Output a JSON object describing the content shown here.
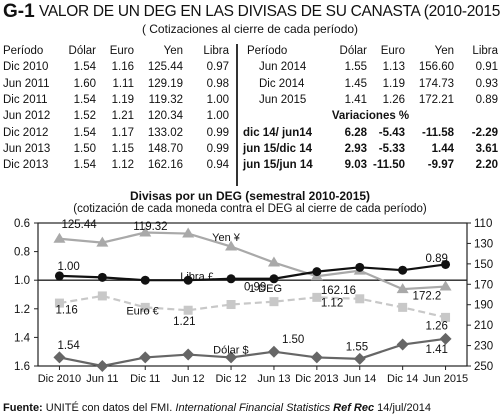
{
  "header": {
    "tag": "G-1",
    "title": "VALOR DE UN DEG EN LAS DIVISAS DE SU CANASTA (2010-2015)",
    "subtitle": "( Cotizaciones al cierre de cada período)"
  },
  "table_left": {
    "columns": [
      "Período",
      "Dólar",
      "Euro",
      "Yen",
      "Libra"
    ],
    "rows": [
      [
        "Dic 2010",
        "1.54",
        "1.16",
        "125.44",
        "0.97"
      ],
      [
        "Jun 2011",
        "1.60",
        "1.11",
        "129.19",
        "0.98"
      ],
      [
        "Dic 2011",
        "1.54",
        "1.19",
        "119.32",
        "1.00"
      ],
      [
        "Jun 2012",
        "1.52",
        "1.21",
        "120.34",
        "1.00"
      ],
      [
        "Dic 2012",
        "1.54",
        "1.17",
        "133.02",
        "0.99"
      ],
      [
        "Jun 2013",
        "1.50",
        "1.15",
        "148.70",
        "0.99"
      ],
      [
        "Dic 2013",
        "1.54",
        "1.12",
        "162.16",
        "0.94"
      ]
    ]
  },
  "table_right": {
    "columns": [
      "Período",
      "Dólar",
      "Euro",
      "Yen",
      "Libra"
    ],
    "rows": [
      [
        "Jun 2014",
        "1.55",
        "1.13",
        "156.60",
        "0.91"
      ],
      [
        "Dic 2014",
        "1.45",
        "1.19",
        "174.73",
        "0.93"
      ],
      [
        "Jun 2015",
        "1.41",
        "1.26",
        "172.21",
        "0.89"
      ]
    ],
    "variations_title": "Variaciones %",
    "variations": [
      [
        "dic 14/ jun14",
        "6.28",
        "-5.43",
        "-11.58",
        "-2.29"
      ],
      [
        "jun 15/dic 14",
        "2.93",
        "-5.33",
        "1.44",
        "3.61"
      ],
      [
        "jun 15/jun 14",
        "9.03",
        "-11.50",
        "-9.97",
        "2.20"
      ]
    ]
  },
  "chart_data": {
    "type": "line",
    "title": "Divisas por un DEG (semestral 2010-2015)",
    "subtitle": "(cotización de cada moneda contra el DEG al cierre de cada período)",
    "categories": [
      "Dic 2010",
      "Jun 11",
      "Dic 11",
      "Jun 12",
      "Dic 12",
      "Jun 13",
      "Dic 2013",
      "Jun 14",
      "Dic 14",
      "Jun 2015"
    ],
    "left_axis": {
      "ticks": [
        "0.6",
        "0.8",
        "1.0",
        "1.2",
        "1.4",
        "1.6"
      ],
      "range": [
        0.6,
        1.6
      ],
      "inverted": true
    },
    "right_axis": {
      "ticks": [
        "110",
        "130",
        "150",
        "170",
        "190",
        "210",
        "230",
        "250"
      ],
      "range": [
        110,
        250
      ],
      "inverted": true
    },
    "series": [
      {
        "name": "Yen ¥",
        "axis": "right",
        "color": "#a9a9a9",
        "style": "solid-triangle",
        "values": [
          125.44,
          129.19,
          119.32,
          120.34,
          133.02,
          148.7,
          162.16,
          156.6,
          174.73,
          172.21
        ]
      },
      {
        "name": "Libra £",
        "axis": "left",
        "color": "#111111",
        "style": "solid-circle",
        "values": [
          0.97,
          0.98,
          1.0,
          1.0,
          0.99,
          0.99,
          0.94,
          0.91,
          0.93,
          0.89
        ]
      },
      {
        "name": "Euro €",
        "axis": "left",
        "color": "#c8c8c8",
        "style": "dashed-square",
        "values": [
          1.16,
          1.11,
          1.19,
          1.21,
          1.17,
          1.15,
          1.12,
          1.13,
          1.19,
          1.26
        ]
      },
      {
        "name": "Dólar $",
        "axis": "left",
        "color": "#666666",
        "style": "solid-diamond",
        "values": [
          1.54,
          1.6,
          1.54,
          1.52,
          1.54,
          1.5,
          1.54,
          1.55,
          1.45,
          1.41
        ]
      }
    ],
    "reference_label": "1 DEG",
    "annotations": [
      "125.44",
      "119.32",
      "1.00",
      "0.99",
      "162.16",
      "0.89",
      "172.2",
      "1.16",
      "1.21",
      "1.12",
      "1.26",
      "1.54",
      "1.50",
      "1.55",
      "1.41"
    ]
  },
  "source": {
    "label": "Fuente:",
    "text": " UNITÉ con datos del FMI. ",
    "italic": "International Financial Statistics",
    "ref": "Ref Rec",
    "date": " 14/jul/2014"
  }
}
